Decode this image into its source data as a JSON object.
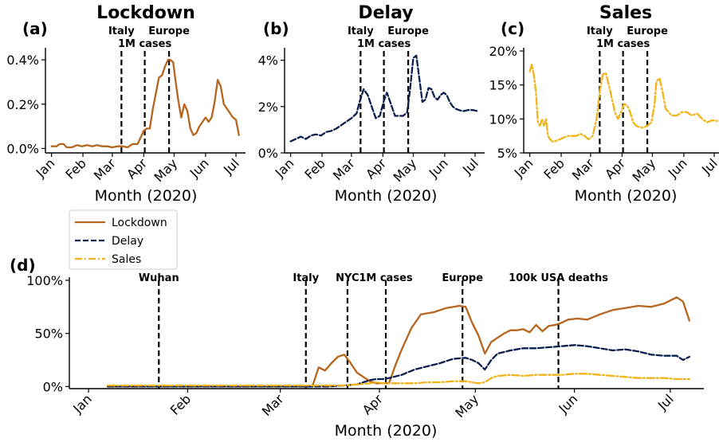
{
  "colors": {
    "lockdown": "#B5651D",
    "delay": "#0B1F4F",
    "sales": "#F2B319"
  },
  "legend": {
    "items": [
      {
        "label": "Lockdown",
        "series": "lockdown",
        "dash": "solid"
      },
      {
        "label": "Delay",
        "series": "delay",
        "dash": "dashed"
      },
      {
        "label": "Sales",
        "series": "sales",
        "dash": "dashdot"
      }
    ]
  },
  "chart_data": [
    {
      "type": "line",
      "panel_label": "(a)",
      "title": "Lockdown",
      "xlabel": "Month (2020)",
      "ylabel": "",
      "x_ticks": [
        "Jan",
        "Feb",
        "Mar",
        "Apr",
        "May",
        "Jun",
        "Jul"
      ],
      "x_tick_days": [
        0,
        31,
        60,
        91,
        121,
        152,
        182
      ],
      "xlim": [
        -6,
        193
      ],
      "ylim": [
        -0.02,
        0.44
      ],
      "y_ticks": [
        0.0,
        0.2,
        0.4
      ],
      "y_tick_labels": [
        "0.0%",
        "0.2%",
        "0.4%"
      ],
      "events": [
        {
          "label": "Italy",
          "day": 69,
          "row": 0
        },
        {
          "label": "1M cases",
          "day": 92,
          "row": 1
        },
        {
          "label": "Europe",
          "day": 116,
          "row": 0
        }
      ],
      "series": [
        {
          "name": "Lockdown",
          "key": "lockdown",
          "dash": "solid",
          "x": [
            0,
            5,
            8,
            12,
            15,
            20,
            25,
            30,
            35,
            40,
            45,
            50,
            55,
            60,
            65,
            70,
            75,
            80,
            85,
            88,
            91,
            94,
            97,
            100,
            103,
            106,
            109,
            112,
            115,
            117,
            120,
            122,
            125,
            128,
            131,
            134,
            137,
            140,
            143,
            146,
            149,
            152,
            155,
            158,
            161,
            164,
            167,
            170,
            173,
            176,
            179,
            182,
            185
          ],
          "y": [
            0.01,
            0.01,
            0.02,
            0.02,
            0.005,
            0.005,
            0.015,
            0.01,
            0.015,
            0.01,
            0.015,
            0.01,
            0.01,
            0.005,
            0.01,
            0.01,
            0.005,
            0.02,
            0.02,
            0.05,
            0.08,
            0.09,
            0.09,
            0.18,
            0.25,
            0.32,
            0.33,
            0.37,
            0.4,
            0.4,
            0.39,
            0.32,
            0.22,
            0.14,
            0.2,
            0.17,
            0.09,
            0.06,
            0.07,
            0.1,
            0.12,
            0.14,
            0.12,
            0.14,
            0.21,
            0.31,
            0.28,
            0.2,
            0.18,
            0.16,
            0.14,
            0.13,
            0.06
          ]
        }
      ]
    },
    {
      "type": "line",
      "panel_label": "(b)",
      "title": "Delay",
      "xlabel": "Month (2020)",
      "ylabel": "",
      "x_ticks": [
        "Jan",
        "Feb",
        "Mar",
        "Apr",
        "May",
        "Jun",
        "Jul"
      ],
      "x_tick_days": [
        0,
        31,
        60,
        91,
        121,
        152,
        182
      ],
      "xlim": [
        -6,
        193
      ],
      "ylim": [
        0.0,
        4.4
      ],
      "y_ticks": [
        0,
        2,
        4
      ],
      "y_tick_labels": [
        "0%",
        "2%",
        "4%"
      ],
      "events": [
        {
          "label": "Italy",
          "day": 69,
          "row": 0
        },
        {
          "label": "1M cases",
          "day": 92,
          "row": 1
        },
        {
          "label": "Europe",
          "day": 116,
          "row": 0
        }
      ],
      "series": [
        {
          "name": "Delay",
          "key": "delay",
          "dash": "dashed",
          "x": [
            0,
            5,
            10,
            15,
            20,
            25,
            30,
            35,
            40,
            45,
            50,
            55,
            60,
            65,
            68,
            72,
            76,
            80,
            84,
            88,
            92,
            95,
            99,
            103,
            107,
            111,
            115,
            118,
            121,
            124,
            127,
            130,
            133,
            136,
            139,
            142,
            145,
            148,
            151,
            154,
            157,
            160,
            163,
            166,
            170,
            175,
            180,
            185
          ],
          "y": [
            0.5,
            0.6,
            0.7,
            0.6,
            0.75,
            0.8,
            0.75,
            0.9,
            0.95,
            1.05,
            1.2,
            1.35,
            1.5,
            1.7,
            2.2,
            2.75,
            2.5,
            2.0,
            1.5,
            1.6,
            2.25,
            2.6,
            2.1,
            1.6,
            1.6,
            1.6,
            1.75,
            2.8,
            4.1,
            4.2,
            3.2,
            2.2,
            2.3,
            2.8,
            2.75,
            2.4,
            2.3,
            2.5,
            2.6,
            2.5,
            2.2,
            2.0,
            1.9,
            1.85,
            1.8,
            1.85,
            1.85,
            1.8
          ]
        }
      ]
    },
    {
      "type": "line",
      "panel_label": "(c)",
      "title": "Sales",
      "xlabel": "Month (2020)",
      "ylabel": "",
      "x_ticks": [
        "Jan",
        "Feb",
        "Mar",
        "Apr",
        "May",
        "Jun",
        "Jul"
      ],
      "x_tick_days": [
        0,
        31,
        60,
        91,
        121,
        152,
        182
      ],
      "xlim": [
        -6,
        193
      ],
      "ylim": [
        5,
        20
      ],
      "y_ticks": [
        5,
        10,
        15,
        20
      ],
      "y_tick_labels": [
        "5%",
        "10%",
        "15%",
        "20%"
      ],
      "events": [
        {
          "label": "Italy",
          "day": 69,
          "row": 0
        },
        {
          "label": "1M cases",
          "day": 92,
          "row": 1
        },
        {
          "label": "Europe",
          "day": 116,
          "row": 0
        }
      ],
      "series": [
        {
          "name": "Sales",
          "key": "sales",
          "dash": "dashdot",
          "x": [
            0,
            2,
            4,
            6,
            8,
            10,
            12,
            14,
            16,
            18,
            20,
            23,
            26,
            30,
            34,
            38,
            42,
            46,
            50,
            54,
            58,
            62,
            66,
            69,
            72,
            75,
            78,
            81,
            84,
            87,
            90,
            93,
            96,
            99,
            102,
            105,
            108,
            112,
            116,
            120,
            123,
            125,
            128,
            131,
            134,
            137,
            140,
            145,
            150,
            155,
            160,
            165,
            170,
            175,
            180,
            185
          ],
          "y": [
            17.0,
            18.0,
            16.5,
            14.0,
            9.5,
            9.0,
            10.0,
            9.0,
            10.0,
            7.5,
            7.0,
            6.6,
            6.8,
            7.0,
            7.3,
            7.5,
            7.5,
            7.5,
            7.8,
            7.5,
            7.0,
            7.5,
            10.0,
            14.0,
            16.5,
            16.8,
            15.0,
            13.0,
            11.0,
            10.0,
            11.0,
            12.2,
            12.0,
            11.0,
            9.5,
            9.0,
            8.8,
            8.7,
            9.0,
            9.5,
            12.0,
            15.5,
            16.0,
            14.0,
            11.5,
            11.0,
            10.5,
            10.5,
            11.0,
            11.0,
            10.5,
            10.8,
            10.0,
            9.5,
            9.8,
            9.7
          ]
        }
      ]
    },
    {
      "type": "line",
      "panel_label": "(d)",
      "title": "",
      "xlabel": "Month (2020)",
      "ylabel": "",
      "x_ticks": [
        "Jan",
        "Feb",
        "Mar",
        "Apr",
        "May",
        "Jun",
        "Jul"
      ],
      "x_tick_days": [
        0,
        31,
        60,
        91,
        121,
        152,
        182
      ],
      "xlim": [
        -6,
        193
      ],
      "ylim": [
        -2,
        100
      ],
      "y_ticks": [
        0,
        50,
        100
      ],
      "y_tick_labels": [
        "0%",
        "50%",
        "100%"
      ],
      "events": [
        {
          "label": "Wuhan",
          "day": 22
        },
        {
          "label": "Italy",
          "day": 68
        },
        {
          "label": "NYC",
          "day": 81
        },
        {
          "label": "1M cases",
          "day": 93
        },
        {
          "label": "Europe",
          "day": 117
        },
        {
          "label": "100k USA deaths",
          "day": 147
        }
      ],
      "series": [
        {
          "name": "Lockdown",
          "key": "lockdown",
          "dash": "solid",
          "x": [
            6,
            20,
            40,
            60,
            70,
            72,
            74,
            76,
            78,
            80,
            82,
            84,
            86,
            88,
            90,
            92,
            94,
            96,
            98,
            101,
            104,
            108,
            112,
            116,
            118,
            120,
            122,
            124,
            126,
            128,
            130,
            132,
            134,
            136,
            138,
            140,
            142,
            144,
            146,
            148,
            150,
            153,
            156,
            160,
            164,
            168,
            172,
            176,
            180,
            184,
            186,
            188
          ],
          "y": [
            0,
            0,
            0,
            0,
            0,
            18,
            15,
            22,
            28,
            30,
            22,
            13,
            9,
            5,
            3,
            3,
            3,
            20,
            35,
            55,
            68,
            70,
            74,
            76,
            75,
            60,
            48,
            31,
            42,
            46,
            50,
            53,
            53,
            54,
            51,
            58,
            52,
            57,
            58,
            60,
            63,
            64,
            63,
            68,
            72,
            74,
            76,
            75,
            78,
            84,
            80,
            62
          ]
        },
        {
          "name": "Delay",
          "key": "delay",
          "dash": "dashed",
          "x": [
            6,
            20,
            40,
            60,
            70,
            75,
            80,
            84,
            86,
            88,
            90,
            92,
            94,
            98,
            102,
            106,
            110,
            114,
            118,
            120,
            122,
            124,
            126,
            128,
            132,
            136,
            140,
            144,
            148,
            152,
            156,
            160,
            164,
            168,
            172,
            176,
            180,
            184,
            186,
            188
          ],
          "y": [
            0,
            0,
            0,
            0,
            0,
            0,
            1,
            2,
            4,
            6,
            7,
            7,
            8,
            11,
            16,
            19,
            22,
            26,
            27,
            25,
            22,
            16,
            25,
            31,
            34,
            36,
            36,
            37,
            38,
            39,
            38,
            36,
            34,
            35,
            33,
            30,
            29,
            29,
            25,
            28
          ]
        },
        {
          "name": "Sales",
          "key": "sales",
          "dash": "dashdot",
          "x": [
            6,
            20,
            40,
            60,
            70,
            75,
            80,
            84,
            88,
            90,
            92,
            94,
            96,
            98,
            102,
            106,
            110,
            114,
            118,
            120,
            122,
            124,
            126,
            128,
            132,
            136,
            140,
            144,
            148,
            152,
            156,
            160,
            164,
            168,
            172,
            176,
            180,
            184,
            188
          ],
          "y": [
            1,
            1,
            1,
            1,
            1,
            1,
            1,
            2,
            3,
            4,
            3,
            3,
            3,
            3,
            3,
            4,
            4,
            5,
            5,
            4,
            3,
            4,
            8,
            10,
            11,
            10,
            11,
            11,
            11,
            12,
            12,
            11,
            10,
            9,
            8,
            8,
            8,
            7,
            7
          ]
        }
      ]
    }
  ]
}
